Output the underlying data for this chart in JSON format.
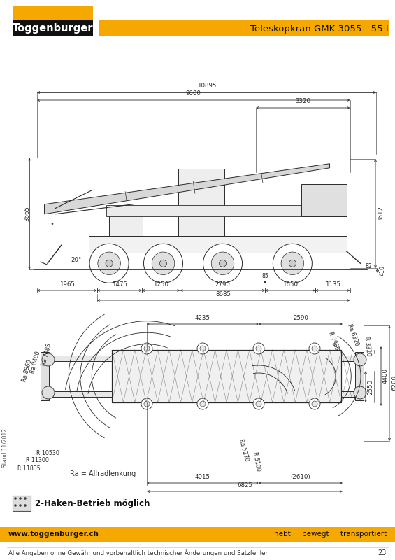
{
  "title": "Teleskopkran GMK 3055 - 55 t",
  "company": "Toggenburger",
  "company_bg": "#F5A800",
  "company_text_bg": "#111111",
  "title_bar_color": "#F5A800",
  "website": "www.toggenburger.ch",
  "tagline": "hebt     bewegt     transportiert",
  "footer_text": "Alle Angaben ohne Gewähr und vorbehaltlich technischer Änderungen und Satzfehler.",
  "page_number": "23",
  "stand_text": "Stand 11/2012",
  "hook_text": "2-Haken-Betrieb möglich",
  "ra_text": "Ra = Allradlenkung",
  "top_dims": {
    "dim_10895": "10895",
    "dim_9600": "9600",
    "dim_3320": "3320",
    "dim_3665": "3665",
    "dim_3612": "3612",
    "dim_20": "20°",
    "dim_82": "82",
    "dim_85": "85",
    "dim_1965": "1965",
    "dim_1475": "1475",
    "dim_1250": "1250",
    "dim_2790": "2790",
    "dim_1650": "1650",
    "dim_1135": "1135",
    "dim_8685": "8685",
    "dim_410": "410"
  },
  "bottom_dims": {
    "dim_4235": "4235",
    "dim_2590": "2590",
    "dim_Ra8400": "Ra 8400",
    "dim_Ra7485": "Ra 7485",
    "dim_Ra8860": "Ra 8860",
    "dim_R7985": "R 7985",
    "dim_Ra6320": "Ra 6320",
    "dim_R3320": "R 3320",
    "dim_2550": "2550",
    "dim_4400": "4400",
    "dim_6200": "6200",
    "dim_R11300": "R 11300",
    "dim_R10530": "R 10530",
    "dim_R11835": "R 11835",
    "dim_Ra5270": "Ra 5270",
    "dim_R5100": "R 5100",
    "dim_4015": "4015",
    "dim_2610": "(2610)",
    "dim_6825": "6825"
  },
  "line_color": "#2a2a2a",
  "dim_color": "#2a2a2a",
  "bg_color": "#FFFFFF"
}
